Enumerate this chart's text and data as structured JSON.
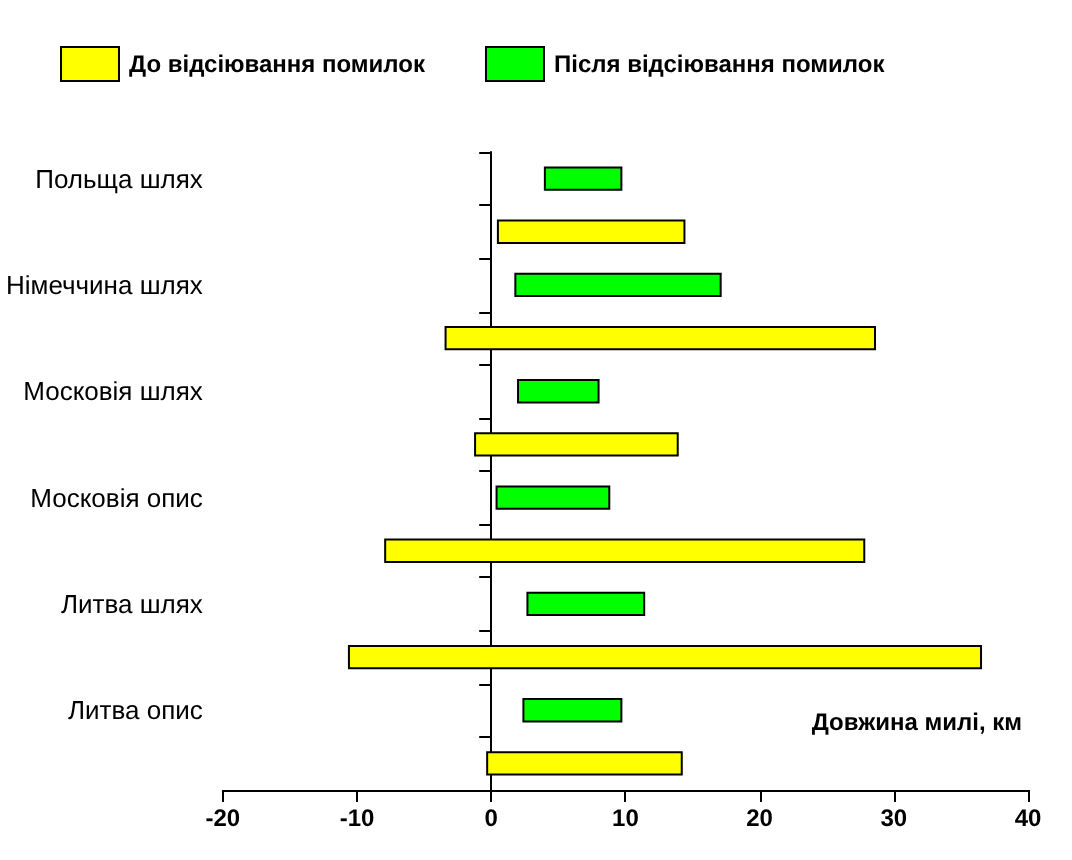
{
  "chart_data": {
    "type": "bar",
    "orientation": "horizontal",
    "xlabel": "Довжина милі, км",
    "categories": [
      "Польща шлях",
      null,
      "Німеччина шлях",
      null,
      "Московія шлях",
      null,
      "Московія опис",
      null,
      "Литва шлях",
      null,
      "Литва опис",
      null
    ],
    "series": [
      {
        "name": "До відсіювання помилок",
        "color": "#ffff00",
        "base": [
          null,
          0.5,
          null,
          -3.4,
          null,
          -1.2,
          null,
          -7.9,
          null,
          -10.6,
          null,
          -0.3
        ],
        "values": [
          null,
          13.9,
          null,
          32.0,
          null,
          15.1,
          null,
          35.7,
          null,
          47.1,
          null,
          14.5
        ]
      },
      {
        "name": "Після відсіювання помилок",
        "color": "#00ff00",
        "base": [
          4.0,
          null,
          1.8,
          null,
          2.0,
          null,
          0.4,
          null,
          2.7,
          null,
          2.4,
          null
        ],
        "values": [
          5.7,
          null,
          15.3,
          null,
          6.0,
          null,
          8.4,
          null,
          8.7,
          null,
          7.3,
          null
        ]
      }
    ],
    "xlim": [
      -20,
      40
    ],
    "xticks": [
      -20,
      -10,
      0,
      10,
      20,
      30,
      40
    ],
    "legend": "top left"
  }
}
